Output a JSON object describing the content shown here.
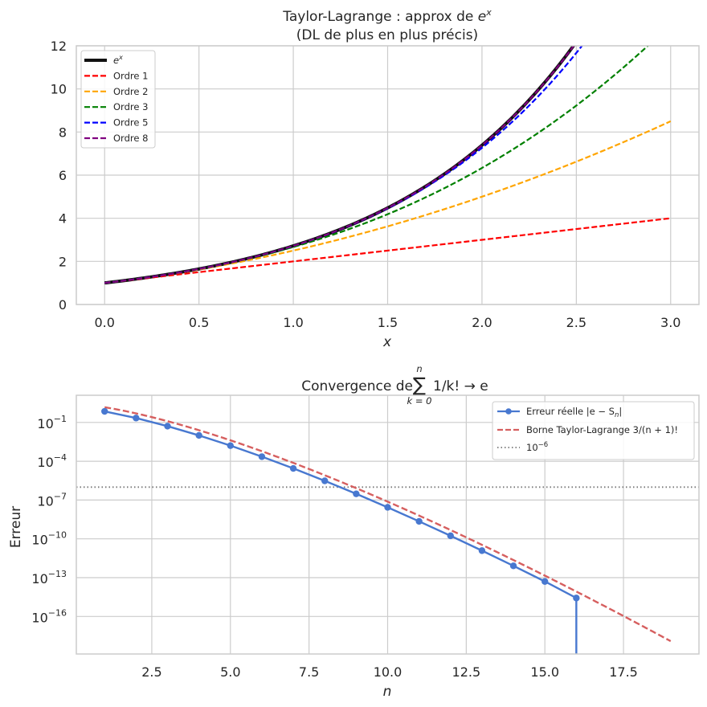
{
  "chart_data": [
    {
      "type": "line",
      "title": "Taylor-Lagrange : approx de e^x",
      "title_line1_prefix": "Taylor-Lagrange : approx de ",
      "title_line1_base": "e",
      "title_line1_exp": "x",
      "title_line2": "(DL de plus en plus précis)",
      "xlabel": "x",
      "ylabel": "",
      "xlim": [
        -0.15,
        3.15
      ],
      "ylim": [
        0,
        12
      ],
      "xticks": [
        0.0,
        0.5,
        1.0,
        1.5,
        2.0,
        2.5,
        3.0
      ],
      "xtick_labels": [
        "0.0",
        "0.5",
        "1.0",
        "1.5",
        "2.0",
        "2.5",
        "3.0"
      ],
      "yticks": [
        0,
        2,
        4,
        6,
        8,
        10,
        12
      ],
      "ytick_labels": [
        "0",
        "2",
        "4",
        "6",
        "8",
        "10",
        "12"
      ],
      "grid": true,
      "legend_position": "top-left",
      "x_domain": [
        0,
        3
      ],
      "series": [
        {
          "name": "e^x",
          "label_base": "e",
          "label_exp": "x",
          "kind": "exp",
          "order": 0,
          "color": "#111111",
          "style": "solid",
          "width": 4
        },
        {
          "name": "Ordre 1",
          "label": "Ordre 1",
          "kind": "taylor",
          "order": 1,
          "color": "#ff0000",
          "style": "dashed",
          "width": 2.2
        },
        {
          "name": "Ordre 2",
          "label": "Ordre 2",
          "kind": "taylor",
          "order": 2,
          "color": "#ffa500",
          "style": "dashed",
          "width": 2.2
        },
        {
          "name": "Ordre 3",
          "label": "Ordre 3",
          "kind": "taylor",
          "order": 3,
          "color": "#008000",
          "style": "dashed",
          "width": 2.2
        },
        {
          "name": "Ordre 5",
          "label": "Ordre 5",
          "kind": "taylor",
          "order": 5,
          "color": "#0000ff",
          "style": "dashed",
          "width": 2.2
        },
        {
          "name": "Ordre 8",
          "label": "Ordre 8",
          "kind": "taylor",
          "order": 8,
          "color": "#800080",
          "style": "dashed",
          "width": 2.2
        }
      ]
    },
    {
      "type": "line",
      "yscale": "log",
      "title": "Convergence de sum_{k=0}^{n} 1/k! -> e",
      "title_prefix": "Convergence de ",
      "title_sum_symbol": "∑",
      "title_sum_upper": "n",
      "title_sum_lower": "k = 0",
      "title_suffix": "1/k! → e",
      "xlabel": "n",
      "ylabel": "Erreur",
      "xlim": [
        0.1,
        19.9
      ],
      "ylim_exp": [
        -18.9,
        1.1
      ],
      "xticks": [
        2.5,
        5.0,
        7.5,
        10.0,
        12.5,
        15.0,
        17.5
      ],
      "xtick_labels": [
        "2.5",
        "5.0",
        "7.5",
        "10.0",
        "12.5",
        "15.0",
        "17.5"
      ],
      "ytick_exponents": [
        -1,
        -4,
        -7,
        -10,
        -13,
        -16
      ],
      "ytick_base": "10",
      "ytick_labels": [
        "−1",
        "−4",
        "−7",
        "−10",
        "−13",
        "−16"
      ],
      "grid": true,
      "legend_position": "top-right",
      "error": {
        "name": "Erreur réelle |e − S_n|",
        "label": "Erreur réelle |e − S",
        "label_sub": "n",
        "label_end": "|",
        "color": "#4878d0",
        "n": [
          1,
          2,
          3,
          4,
          5,
          6,
          7,
          8,
          9,
          10,
          11,
          12,
          13,
          14,
          15,
          16
        ],
        "values": [
          0.718282,
          0.218282,
          0.0516152,
          0.0099485,
          0.00161516,
          0.000226273,
          2.78602e-05,
          3.05862e-06,
          3.02886e-07,
          2.73127e-08,
          2.26033e-09,
          1.72876e-10,
          1.22893e-11,
          8.15348e-13,
          5.07594e-14,
          2.66e-15
        ],
        "drop_at_n": 16
      },
      "bound": {
        "name": "Borne Taylor-Lagrange 3/(n+1)!",
        "label": "Borne Taylor-Lagrange 3/(n + 1)!",
        "color": "#d65f5f",
        "n_range": [
          1,
          19
        ],
        "formula": "3/(n+1)!"
      },
      "threshold": {
        "name": "10^-6",
        "label_base": "10",
        "label_exp": "−6",
        "value": 1e-06,
        "color": "#777777"
      }
    }
  ]
}
